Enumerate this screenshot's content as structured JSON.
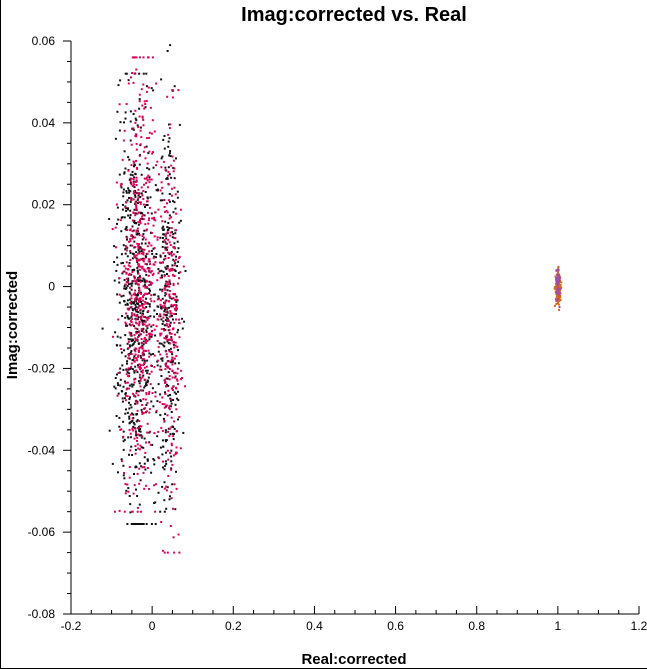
{
  "chart_data": {
    "type": "scatter",
    "title": "Imag:corrected vs. Real",
    "xlabel": "Real:corrected",
    "ylabel": "Imag:corrected",
    "xlim": [
      -0.2,
      1.2
    ],
    "ylim": [
      -0.08,
      0.06
    ],
    "grid": false,
    "x_ticks": [
      -0.2,
      0,
      0.2,
      0.4,
      0.6,
      0.8,
      1,
      1.2
    ],
    "x_tick_labels": [
      "-0.2",
      "0",
      "0.2",
      "0.4",
      "0.6",
      "0.8",
      "1",
      "1.2"
    ],
    "y_ticks": [
      -0.08,
      -0.06,
      -0.04,
      -0.02,
      0,
      0.02,
      0.04,
      0.06
    ],
    "y_tick_labels": [
      "-0.08",
      "-0.06",
      "-0.04",
      "-0.02",
      "0",
      "0.02",
      "0.04",
      "0.06"
    ],
    "series": [
      {
        "color": "#111111",
        "clusters": [
          {
            "x_center": -0.04,
            "x_spread": 0.025,
            "y_center": -0.005,
            "y_spread": 0.026,
            "y_min": -0.058,
            "y_max": 0.052,
            "count": 650
          },
          {
            "x_center": 0.04,
            "x_spread": 0.015,
            "y_center": -0.005,
            "y_spread": 0.024,
            "y_min": -0.055,
            "y_max": 0.059,
            "count": 300
          }
        ]
      },
      {
        "color": "#e0005a",
        "clusters": [
          {
            "x_center": -0.03,
            "x_spread": 0.022,
            "y_center": 0.0,
            "y_spread": 0.025,
            "y_min": -0.055,
            "y_max": 0.056,
            "count": 600
          },
          {
            "x_center": 0.045,
            "x_spread": 0.014,
            "y_center": -0.01,
            "y_spread": 0.024,
            "y_min": -0.065,
            "y_max": 0.048,
            "count": 280
          }
        ]
      },
      {
        "color": "#d2691e",
        "clusters": [
          {
            "x_center": 1.0,
            "x_spread": 0.004,
            "y_center": 0.0,
            "y_spread": 0.0025,
            "y_min": -0.007,
            "y_max": 0.005,
            "count": 120
          }
        ]
      },
      {
        "color": "#a04ab0",
        "clusters": [
          {
            "x_center": 1.0,
            "x_spread": 0.003,
            "y_center": 0.0,
            "y_spread": 0.002,
            "y_min": -0.005,
            "y_max": 0.004,
            "count": 40
          }
        ]
      }
    ]
  }
}
